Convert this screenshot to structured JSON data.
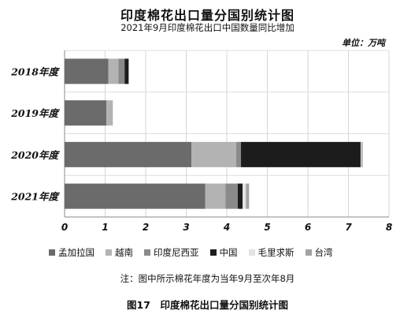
{
  "chart_data": {
    "type": "bar",
    "orientation": "horizontal",
    "stacked": true,
    "title": "印度棉花出口量分国别统计图",
    "subtitle": "2021年9月印度棉花出口中国数量同比增加",
    "unit_label": "单位：万吨",
    "categories": [
      "2018年度",
      "2019年度",
      "2020年度",
      "2021年度"
    ],
    "series": [
      {
        "name": "孟加拉国",
        "color": "#6b6b6b",
        "values": [
          1.08,
          1.03,
          3.13,
          3.47
        ]
      },
      {
        "name": "越南",
        "color": "#b3b3b3",
        "values": [
          0.25,
          0.16,
          1.1,
          0.5
        ]
      },
      {
        "name": "印度尼西亚",
        "color": "#8a8a8a",
        "values": [
          0.15,
          0.0,
          0.12,
          0.3
        ]
      },
      {
        "name": "中国",
        "color": "#1c1c1c",
        "values": [
          0.1,
          0.0,
          2.95,
          0.12
        ]
      },
      {
        "name": "毛里求斯",
        "color": "#e3e3e3",
        "values": [
          0.0,
          0.0,
          0.02,
          0.08
        ]
      },
      {
        "name": "台湾",
        "color": "#a3a3a3",
        "values": [
          0.0,
          0.0,
          0.03,
          0.08
        ]
      }
    ],
    "xlim": [
      0,
      8
    ],
    "xticks": [
      "0",
      "1",
      "2",
      "3",
      "4",
      "5",
      "6",
      "7",
      "8"
    ],
    "grid": true,
    "legend_position": "bottom"
  },
  "note": "注：图中所示棉花年度为当年9月至次年8月",
  "caption": "图17　印度棉花出口量分国别统计图"
}
